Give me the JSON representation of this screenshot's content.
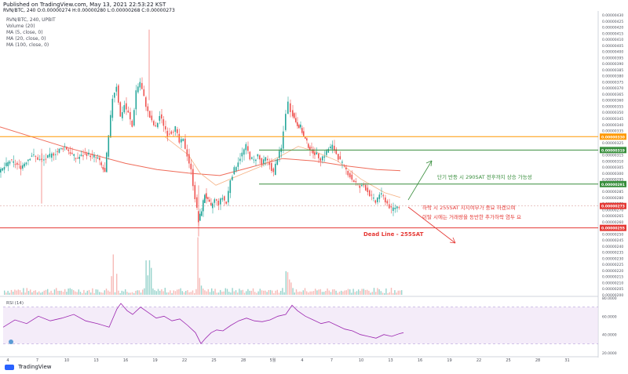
{
  "header": {
    "published": "Published on TradingView.com, May 13, 2021 22:53:22 KST",
    "ohlc": "RVN/BTC, 240 O:0.00000274 H:0.00000280 L:0.00000268 C:0.00000273"
  },
  "legend": [
    "RVN/BTC, 240, UPBIT",
    "Volume (20)",
    "MA (5, close, 0)",
    "MA (20, close, 0)",
    "MA (100, close, 0)"
  ],
  "rsi_label": "RSI (14)",
  "footer_brand": "TradingView",
  "colors": {
    "up": "#26a69a",
    "down": "#ef5350",
    "orange": "#ff9800",
    "green": "#388e3c",
    "red": "#e53935",
    "rsi": "#9c27b0",
    "ma100": "#ef6c5a",
    "ma20": "#f5b183"
  },
  "chart_data": {
    "type": "candlestick",
    "y_ticks": [
      "0.00000430",
      "0.00000425",
      "0.00000420",
      "0.00000415",
      "0.00000410",
      "0.00000405",
      "0.00000400",
      "0.00000395",
      "0.00000390",
      "0.00000385",
      "0.00000380",
      "0.00000375",
      "0.00000370",
      "0.00000365",
      "0.00000360",
      "0.00000355",
      "0.00000350",
      "0.00000345",
      "0.00000340",
      "0.00000335",
      "0.00000330",
      "0.00000325",
      "0.00000320",
      "0.00000315",
      "0.00000310",
      "0.00000305",
      "0.00000300",
      "0.00000295",
      "0.00000290",
      "0.00000285",
      "0.00000280",
      "0.00000275",
      "0.00000270",
      "0.00000265",
      "0.00000260",
      "0.00000255",
      "0.00000250",
      "0.00000245",
      "0.00000240",
      "0.00000235",
      "0.00000230",
      "0.00000225",
      "0.00000220",
      "0.00000215",
      "0.00000210",
      "0.00000205",
      "0.00000200"
    ],
    "price_range": [
      200,
      432
    ],
    "x_ticks": [
      "4",
      "7",
      "10",
      "13",
      "16",
      "19",
      "22",
      "25",
      "28",
      "5월",
      "4",
      "7",
      "10",
      "13",
      "16",
      "19",
      "22",
      "25",
      "28",
      "31",
      "6월"
    ],
    "levels": [
      {
        "value": "0.00000330",
        "color": "orange"
      },
      {
        "value": "0.00000319",
        "color": "green"
      },
      {
        "value": "0.00000291",
        "color": "green"
      },
      {
        "value": "0.00000273",
        "color": "red"
      },
      {
        "value": "0.00000255",
        "color": "red"
      }
    ],
    "annotations": {
      "up_text": "단기 반등 시 290SAT 전후까지 상승 가능성",
      "down_text_1": "하락 시 255SAT 지지여부가 중요 하겠으며",
      "down_text_2": "이탈 시에는 거래량을 동반한 추가하락 염두 요",
      "deadline": "Dead Line - 255SAT"
    },
    "rsi_ticks": [
      "80.0000",
      "60.0000",
      "40.0000",
      "20.0000"
    ],
    "rsi_range": [
      20,
      80
    ],
    "candles_close_path": [
      [
        0,
        300
      ],
      [
        14,
        310
      ],
      [
        28,
        305
      ],
      [
        42,
        315
      ],
      [
        55,
        310
      ],
      [
        70,
        316
      ],
      [
        84,
        322
      ],
      [
        98,
        312
      ],
      [
        112,
        316
      ],
      [
        126,
        312
      ],
      [
        135,
        300
      ],
      [
        140,
        330
      ],
      [
        145,
        362
      ],
      [
        150,
        372
      ],
      [
        155,
        346
      ],
      [
        160,
        356
      ],
      [
        165,
        349
      ],
      [
        170,
        338
      ],
      [
        175,
        368
      ],
      [
        180,
        375
      ],
      [
        185,
        362
      ],
      [
        190,
        350
      ],
      [
        195,
        342
      ],
      [
        200,
        337
      ],
      [
        205,
        347
      ],
      [
        210,
        340
      ],
      [
        215,
        332
      ],
      [
        220,
        334
      ],
      [
        225,
        337
      ],
      [
        230,
        325
      ],
      [
        235,
        327
      ],
      [
        240,
        315
      ],
      [
        245,
        302
      ],
      [
        250,
        280
      ],
      [
        254,
        260
      ],
      [
        258,
        270
      ],
      [
        262,
        283
      ],
      [
        266,
        277
      ],
      [
        270,
        272
      ],
      [
        275,
        278
      ],
      [
        280,
        275
      ],
      [
        285,
        280
      ],
      [
        290,
        275
      ],
      [
        295,
        295
      ],
      [
        300,
        303
      ],
      [
        305,
        310
      ],
      [
        310,
        316
      ],
      [
        315,
        322
      ],
      [
        320,
        313
      ],
      [
        325,
        310
      ],
      [
        330,
        315
      ],
      [
        335,
        307
      ],
      [
        340,
        312
      ],
      [
        345,
        307
      ],
      [
        350,
        300
      ],
      [
        355,
        313
      ],
      [
        360,
        320
      ],
      [
        363,
        334
      ],
      [
        366,
        350
      ],
      [
        369,
        358
      ],
      [
        372,
        352
      ],
      [
        376,
        345
      ],
      [
        380,
        340
      ],
      [
        384,
        338
      ],
      [
        388,
        330
      ],
      [
        392,
        325
      ],
      [
        396,
        320
      ],
      [
        400,
        318
      ],
      [
        405,
        315
      ],
      [
        410,
        312
      ],
      [
        415,
        315
      ],
      [
        420,
        320
      ],
      [
        425,
        322
      ],
      [
        430,
        316
      ],
      [
        435,
        310
      ],
      [
        440,
        305
      ],
      [
        445,
        300
      ],
      [
        450,
        295
      ],
      [
        455,
        292
      ],
      [
        460,
        288
      ],
      [
        465,
        290
      ],
      [
        470,
        285
      ],
      [
        475,
        280
      ],
      [
        480,
        276
      ],
      [
        485,
        283
      ],
      [
        490,
        280
      ],
      [
        495,
        275
      ],
      [
        500,
        270
      ],
      [
        505,
        272
      ],
      [
        510,
        273
      ]
    ],
    "rsi_path": [
      [
        0,
        48
      ],
      [
        15,
        56
      ],
      [
        30,
        52
      ],
      [
        45,
        60
      ],
      [
        60,
        55
      ],
      [
        75,
        58
      ],
      [
        90,
        62
      ],
      [
        105,
        55
      ],
      [
        120,
        52
      ],
      [
        135,
        48
      ],
      [
        145,
        68
      ],
      [
        150,
        74
      ],
      [
        158,
        66
      ],
      [
        165,
        62
      ],
      [
        175,
        70
      ],
      [
        185,
        64
      ],
      [
        195,
        58
      ],
      [
        205,
        60
      ],
      [
        215,
        55
      ],
      [
        225,
        57
      ],
      [
        235,
        50
      ],
      [
        245,
        42
      ],
      [
        252,
        30
      ],
      [
        258,
        36
      ],
      [
        265,
        42
      ],
      [
        272,
        45
      ],
      [
        280,
        44
      ],
      [
        290,
        50
      ],
      [
        300,
        55
      ],
      [
        310,
        58
      ],
      [
        320,
        55
      ],
      [
        330,
        54
      ],
      [
        340,
        56
      ],
      [
        350,
        60
      ],
      [
        360,
        62
      ],
      [
        368,
        72
      ],
      [
        375,
        66
      ],
      [
        385,
        60
      ],
      [
        395,
        56
      ],
      [
        405,
        52
      ],
      [
        415,
        54
      ],
      [
        425,
        50
      ],
      [
        435,
        46
      ],
      [
        445,
        44
      ],
      [
        455,
        40
      ],
      [
        465,
        38
      ],
      [
        475,
        36
      ],
      [
        485,
        40
      ],
      [
        495,
        38
      ],
      [
        505,
        41
      ],
      [
        510,
        42
      ]
    ]
  }
}
